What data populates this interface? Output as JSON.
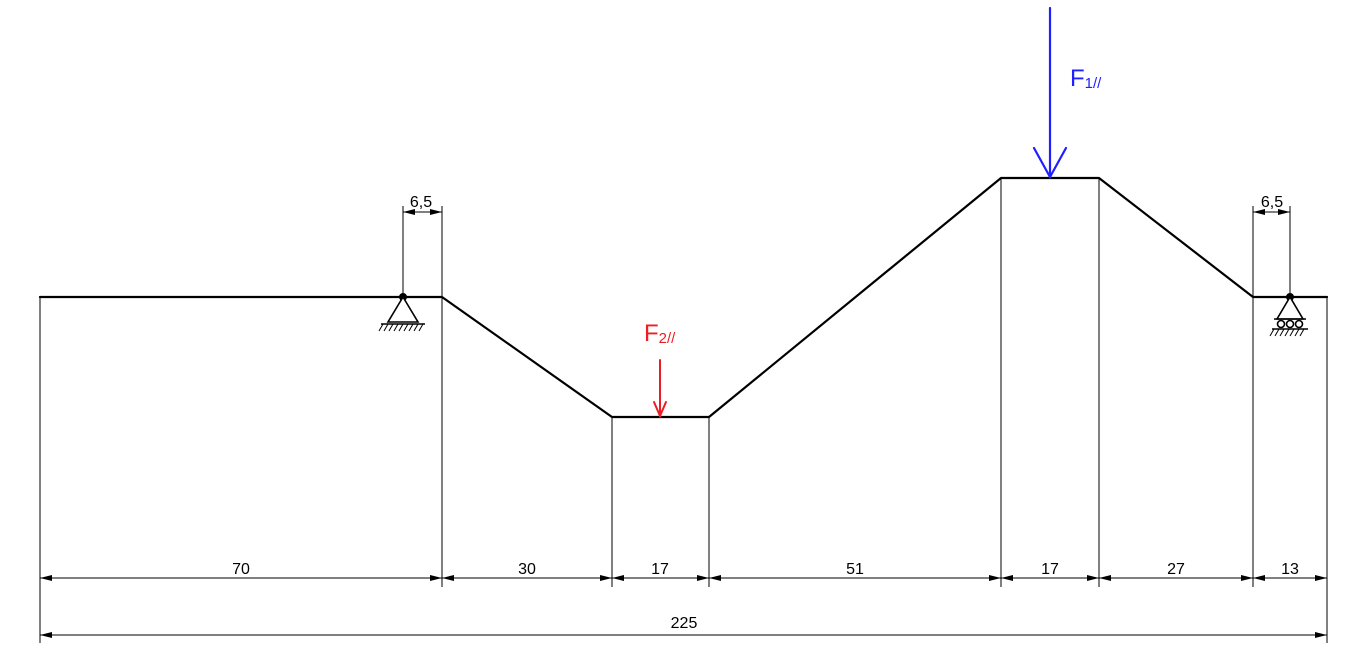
{
  "diagram": {
    "dimensions": {
      "seg1": "70",
      "seg2": "30",
      "seg3": "17",
      "seg4": "51",
      "seg5": "17",
      "seg6": "27",
      "seg7": "13",
      "total": "225",
      "support_left_offset": "6,5",
      "support_right_offset": "6,5"
    },
    "forces": {
      "f1": {
        "main": "F",
        "sub": "1//",
        "color": "#1f1fff"
      },
      "f2": {
        "main": "F",
        "sub": "2//",
        "color": "#ee1c24"
      }
    },
    "line_color": "#000000"
  }
}
